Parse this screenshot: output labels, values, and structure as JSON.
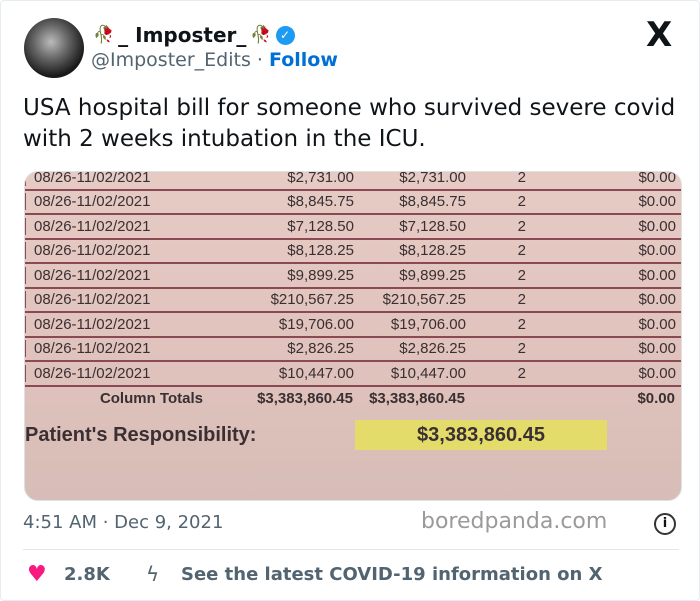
{
  "author": {
    "display_name": "_ Imposter_",
    "name_emoji": "wilted-tulip",
    "handle": "@Imposter_Edits",
    "separator": "·",
    "follow_label": "Follow",
    "verified": true
  },
  "platform_logo": "X",
  "tweet_text": "USA hospital bill for someone who survived severe covid with 2 weeks intubation in the ICU.",
  "bill": {
    "rows": [
      [
        "08/26-11/02/2021",
        "$2,731.00",
        "$2,731.00",
        "2",
        "$0.00"
      ],
      [
        "08/26-11/02/2021",
        "$8,845.75",
        "$8,845.75",
        "2",
        "$0.00"
      ],
      [
        "08/26-11/02/2021",
        "$7,128.50",
        "$7,128.50",
        "2",
        "$0.00"
      ],
      [
        "08/26-11/02/2021",
        "$8,128.25",
        "$8,128.25",
        "2",
        "$0.00"
      ],
      [
        "08/26-11/02/2021",
        "$9,899.25",
        "$9,899.25",
        "2",
        "$0.00"
      ],
      [
        "08/26-11/02/2021",
        "$210,567.25",
        "$210,567.25",
        "2",
        "$0.00"
      ],
      [
        "08/26-11/02/2021",
        "$19,706.00",
        "$19,706.00",
        "2",
        "$0.00"
      ],
      [
        "08/26-11/02/2021",
        "$2,826.25",
        "$2,826.25",
        "2",
        "$0.00"
      ],
      [
        "08/26-11/02/2021",
        "$10,447.00",
        "$10,447.00",
        "2",
        "$0.00"
      ]
    ],
    "totals": {
      "label": "Column Totals",
      "charges": "$3,383,860.45",
      "allowed": "$3,383,860.45",
      "balance": "$0.00"
    },
    "responsibility_label": "Patient's Responsibility:",
    "responsibility_value": "$3,383,860.45"
  },
  "timestamp": "4:51 AM · Dec 9, 2021",
  "likes": "2.8K",
  "covid_link": "See the latest COVID-19 information on X",
  "watermark": "boredpanda.com",
  "colors": {
    "follow": "#006fd6",
    "heart": "#f91880",
    "verified": "#1d9bf0"
  }
}
